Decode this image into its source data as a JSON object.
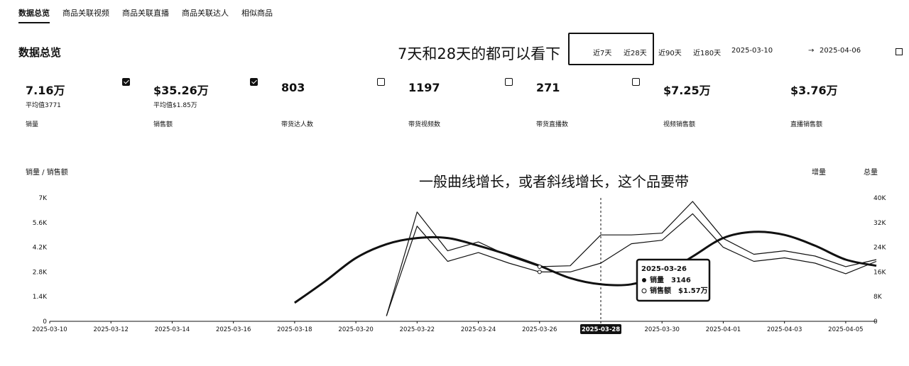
{
  "tabs": [
    "数据总览",
    "商品关联视频",
    "商品关联直播",
    "商品关联达人",
    "相似商品"
  ],
  "section_title": "数据总览",
  "annotation_top": "7天和28天的都可以看下",
  "annotation_chart": "一般曲线增长，或者斜线增长，这个品要带",
  "ranges": [
    "近7天",
    "近28天",
    "近90天",
    "近180天"
  ],
  "date_from": "2025-03-10",
  "date_arrow": "→",
  "date_to": "2025-04-06",
  "metrics": [
    {
      "value": "7.16万",
      "avg": "平均值3771",
      "label": "销量",
      "checked": true
    },
    {
      "value": "$35.26万",
      "avg": "平均值$1.85万",
      "label": "销售额",
      "checked": true
    },
    {
      "value": "803",
      "avg": "",
      "label": "带货达人数",
      "checked": false
    },
    {
      "value": "1197",
      "avg": "",
      "label": "带货视频数",
      "checked": false
    },
    {
      "value": "271",
      "avg": "",
      "label": "带货直播数",
      "checked": false
    },
    {
      "value": "$7.25万",
      "avg": "",
      "label": "视频销售额",
      "checked": null
    },
    {
      "value": "$3.76万",
      "avg": "",
      "label": "直播销售额",
      "checked": null
    }
  ],
  "chart_labels": {
    "left_title": "销量 / 销售额",
    "right_title_a": "增量",
    "right_title_b": "总量"
  },
  "tooltip": {
    "date": "2025-03-26",
    "row1_label": "销量",
    "row1_value": "3146",
    "row2_label": "销售额",
    "row2_value": "$1.57万"
  },
  "chart_data": {
    "type": "line",
    "x": [
      "2025-03-10",
      "2025-03-11",
      "2025-03-12",
      "2025-03-13",
      "2025-03-14",
      "2025-03-15",
      "2025-03-16",
      "2025-03-17",
      "2025-03-18",
      "2025-03-19",
      "2025-03-20",
      "2025-03-21",
      "2025-03-22",
      "2025-03-23",
      "2025-03-24",
      "2025-03-25",
      "2025-03-26",
      "2025-03-27",
      "2025-03-28",
      "2025-03-29",
      "2025-03-30",
      "2025-03-31",
      "2025-04-01",
      "2025-04-02",
      "2025-04-03",
      "2025-04-04",
      "2025-04-05",
      "2025-04-06"
    ],
    "x_ticks": [
      "2025-03-10",
      "2025-03-12",
      "2025-03-14",
      "2025-03-16",
      "2025-03-18",
      "2025-03-20",
      "2025-03-22",
      "2025-03-24",
      "2025-03-26",
      "2025-03-28",
      "2025-03-30",
      "2025-04-01",
      "2025-04-03",
      "2025-04-05"
    ],
    "y_left_ticks": [
      "0",
      "1.4K",
      "2.8K",
      "4.2K",
      "5.6K",
      "7K"
    ],
    "y_right_ticks": [
      "0",
      "8K",
      "16K",
      "24K",
      "32K",
      "40K"
    ],
    "ylim_left": [
      0,
      7000
    ],
    "ylim_right": [
      0,
      40000
    ],
    "highlight_x": "2025-03-28",
    "series": [
      {
        "axis": "left",
        "values": [
          null,
          null,
          null,
          null,
          null,
          null,
          null,
          null,
          null,
          null,
          null,
          300,
          6200,
          4000,
          4500,
          3700,
          3100,
          3150,
          4900,
          4900,
          5000,
          6800,
          4700,
          3800,
          4000,
          3700,
          3100,
          3500
        ]
      },
      {
        "axis": "left",
        "values": [
          null,
          null,
          null,
          null,
          null,
          null,
          null,
          null,
          null,
          null,
          null,
          300,
          5400,
          3400,
          3900,
          3300,
          2800,
          2800,
          3300,
          4400,
          4600,
          6100,
          4200,
          3400,
          3600,
          3300,
          2700,
          3400
        ]
      },
      {
        "axis": "right",
        "values": [
          null,
          null,
          null,
          null,
          null,
          null,
          null,
          null,
          6000,
          13000,
          20500,
          25000,
          27000,
          27000,
          24500,
          21500,
          18000,
          14000,
          12000,
          12000,
          15000,
          21000,
          27000,
          29000,
          28000,
          24500,
          20000,
          18000
        ]
      }
    ]
  }
}
